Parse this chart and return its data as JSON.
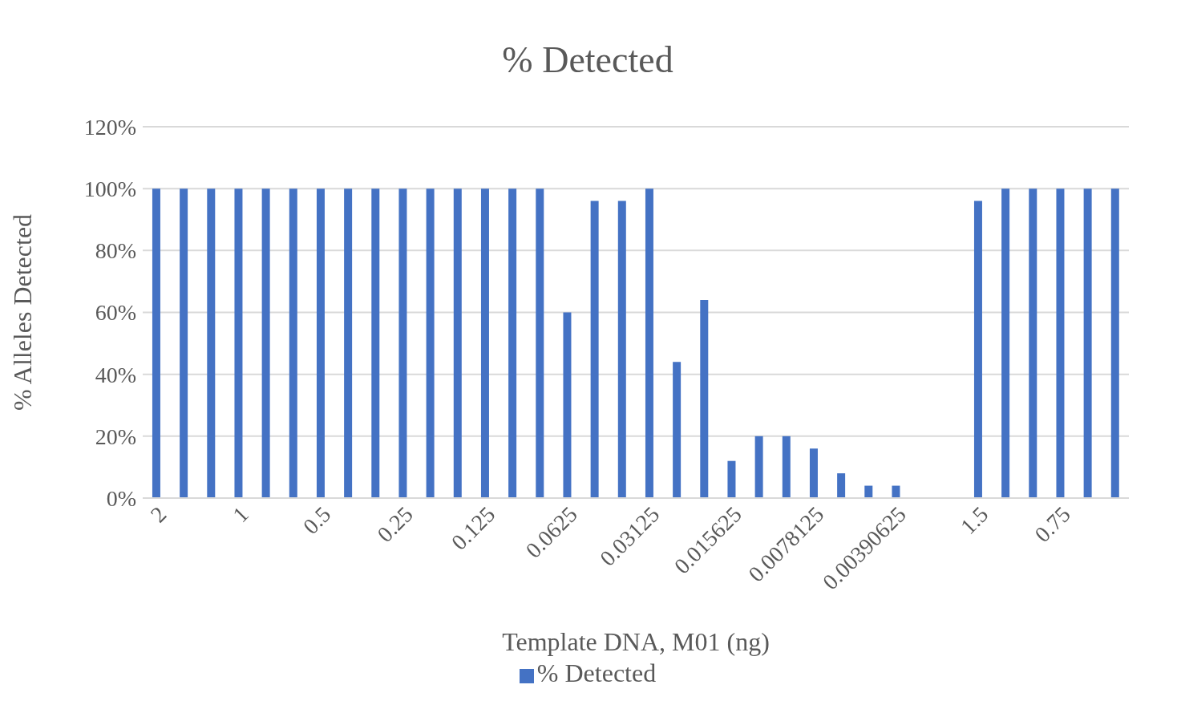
{
  "chart_data": {
    "type": "bar",
    "title": "% Detected",
    "xlabel": "Template DNA, M01 (ng)",
    "ylabel": "% Alleles Detected",
    "categories": [
      "2",
      null,
      null,
      "1",
      null,
      null,
      "0.5",
      null,
      null,
      "0.25",
      null,
      null,
      "0.125",
      null,
      null,
      "0.0625",
      null,
      null,
      "0.03125",
      null,
      null,
      "0.015625",
      null,
      null,
      "0.0078125",
      null,
      null,
      "0.00390625",
      null,
      null,
      "1.5",
      null,
      null,
      "0.75",
      null,
      null
    ],
    "series": [
      {
        "name": "% Detected",
        "color": "#4472c4",
        "values": [
          100,
          100,
          100,
          100,
          100,
          100,
          100,
          100,
          100,
          100,
          100,
          100,
          100,
          100,
          100,
          60,
          96,
          96,
          100,
          44,
          64,
          12,
          20,
          20,
          16,
          8,
          4,
          4,
          0,
          0,
          96,
          100,
          100,
          100,
          100,
          100
        ]
      }
    ],
    "ylim": [
      0,
      120
    ],
    "yticks": [
      {
        "value": 0,
        "label": "0%"
      },
      {
        "value": 20,
        "label": "20%"
      },
      {
        "value": 40,
        "label": "40%"
      },
      {
        "value": 60,
        "label": "60%"
      },
      {
        "value": 80,
        "label": "80%"
      },
      {
        "value": 100,
        "label": "100%"
      },
      {
        "value": 120,
        "label": "120%"
      }
    ],
    "grid": "y",
    "legend": "bottom"
  }
}
